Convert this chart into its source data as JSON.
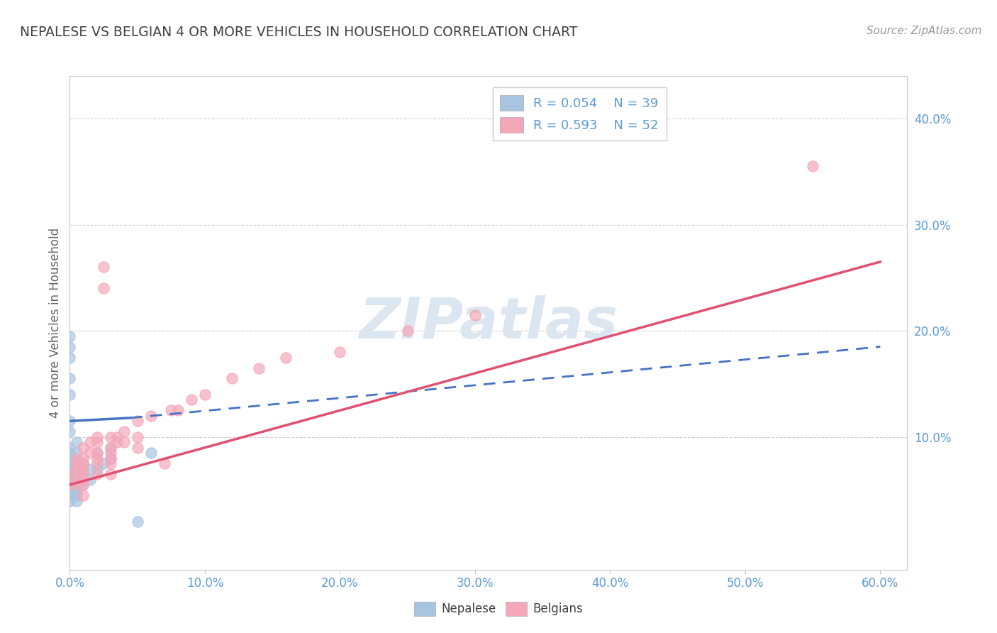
{
  "title": "NEPALESE VS BELGIAN 4 OR MORE VEHICLES IN HOUSEHOLD CORRELATION CHART",
  "source": "Source: ZipAtlas.com",
  "xlim": [
    0.0,
    0.62
  ],
  "ylim": [
    -0.025,
    0.44
  ],
  "ylabel": "4 or more Vehicles in Household",
  "nepalese_color": "#a8c4e0",
  "belgian_color": "#f4a7b9",
  "nepalese_line_color": "#4472c4",
  "belgian_line_color": "#e05070",
  "title_color": "#404040",
  "source_color": "#999999",
  "axis_label_color": "#5b9bd5",
  "watermark_color": "#dce6f0",
  "nepalese_scatter": [
    [
      0.0,
      0.185
    ],
    [
      0.0,
      0.195
    ],
    [
      0.0,
      0.175
    ],
    [
      0.0,
      0.155
    ],
    [
      0.0,
      0.14
    ],
    [
      0.0,
      0.115
    ],
    [
      0.0,
      0.105
    ],
    [
      0.0,
      0.09
    ],
    [
      0.0,
      0.085
    ],
    [
      0.0,
      0.08
    ],
    [
      0.0,
      0.075
    ],
    [
      0.0,
      0.07
    ],
    [
      0.0,
      0.065
    ],
    [
      0.0,
      0.06
    ],
    [
      0.0,
      0.055
    ],
    [
      0.0,
      0.05
    ],
    [
      0.0,
      0.045
    ],
    [
      0.0,
      0.04
    ],
    [
      0.005,
      0.095
    ],
    [
      0.005,
      0.085
    ],
    [
      0.005,
      0.075
    ],
    [
      0.005,
      0.065
    ],
    [
      0.005,
      0.06
    ],
    [
      0.005,
      0.055
    ],
    [
      0.005,
      0.05
    ],
    [
      0.005,
      0.045
    ],
    [
      0.005,
      0.04
    ],
    [
      0.01,
      0.075
    ],
    [
      0.01,
      0.065
    ],
    [
      0.01,
      0.055
    ],
    [
      0.015,
      0.07
    ],
    [
      0.015,
      0.06
    ],
    [
      0.02,
      0.085
    ],
    [
      0.02,
      0.07
    ],
    [
      0.025,
      0.075
    ],
    [
      0.03,
      0.09
    ],
    [
      0.03,
      0.08
    ],
    [
      0.05,
      0.02
    ],
    [
      0.06,
      0.085
    ]
  ],
  "belgian_scatter": [
    [
      0.0,
      0.065
    ],
    [
      0.0,
      0.06
    ],
    [
      0.0,
      0.055
    ],
    [
      0.005,
      0.08
    ],
    [
      0.005,
      0.075
    ],
    [
      0.005,
      0.07
    ],
    [
      0.005,
      0.06
    ],
    [
      0.005,
      0.055
    ],
    [
      0.01,
      0.09
    ],
    [
      0.01,
      0.08
    ],
    [
      0.01,
      0.075
    ],
    [
      0.01,
      0.07
    ],
    [
      0.01,
      0.065
    ],
    [
      0.01,
      0.06
    ],
    [
      0.01,
      0.055
    ],
    [
      0.01,
      0.045
    ],
    [
      0.015,
      0.095
    ],
    [
      0.015,
      0.085
    ],
    [
      0.02,
      0.1
    ],
    [
      0.02,
      0.095
    ],
    [
      0.02,
      0.085
    ],
    [
      0.02,
      0.08
    ],
    [
      0.02,
      0.075
    ],
    [
      0.02,
      0.065
    ],
    [
      0.025,
      0.26
    ],
    [
      0.025,
      0.24
    ],
    [
      0.03,
      0.1
    ],
    [
      0.03,
      0.09
    ],
    [
      0.03,
      0.085
    ],
    [
      0.03,
      0.08
    ],
    [
      0.03,
      0.075
    ],
    [
      0.03,
      0.065
    ],
    [
      0.035,
      0.1
    ],
    [
      0.035,
      0.095
    ],
    [
      0.04,
      0.105
    ],
    [
      0.04,
      0.095
    ],
    [
      0.05,
      0.115
    ],
    [
      0.05,
      0.1
    ],
    [
      0.05,
      0.09
    ],
    [
      0.06,
      0.12
    ],
    [
      0.07,
      0.075
    ],
    [
      0.075,
      0.125
    ],
    [
      0.08,
      0.125
    ],
    [
      0.09,
      0.135
    ],
    [
      0.1,
      0.14
    ],
    [
      0.12,
      0.155
    ],
    [
      0.14,
      0.165
    ],
    [
      0.16,
      0.175
    ],
    [
      0.2,
      0.18
    ],
    [
      0.25,
      0.2
    ],
    [
      0.3,
      0.215
    ],
    [
      0.55,
      0.355
    ]
  ],
  "nepalese_line_solid": [
    [
      0.0,
      0.115
    ],
    [
      0.045,
      0.118
    ]
  ],
  "nepalese_line_dashed": [
    [
      0.045,
      0.118
    ],
    [
      0.6,
      0.185
    ]
  ],
  "belgian_line": [
    [
      0.0,
      0.055
    ],
    [
      0.6,
      0.265
    ]
  ],
  "yticks_right": [
    0.1,
    0.2,
    0.3,
    0.4
  ],
  "xticks": [
    0.0,
    0.1,
    0.2,
    0.3,
    0.4,
    0.5,
    0.6
  ]
}
